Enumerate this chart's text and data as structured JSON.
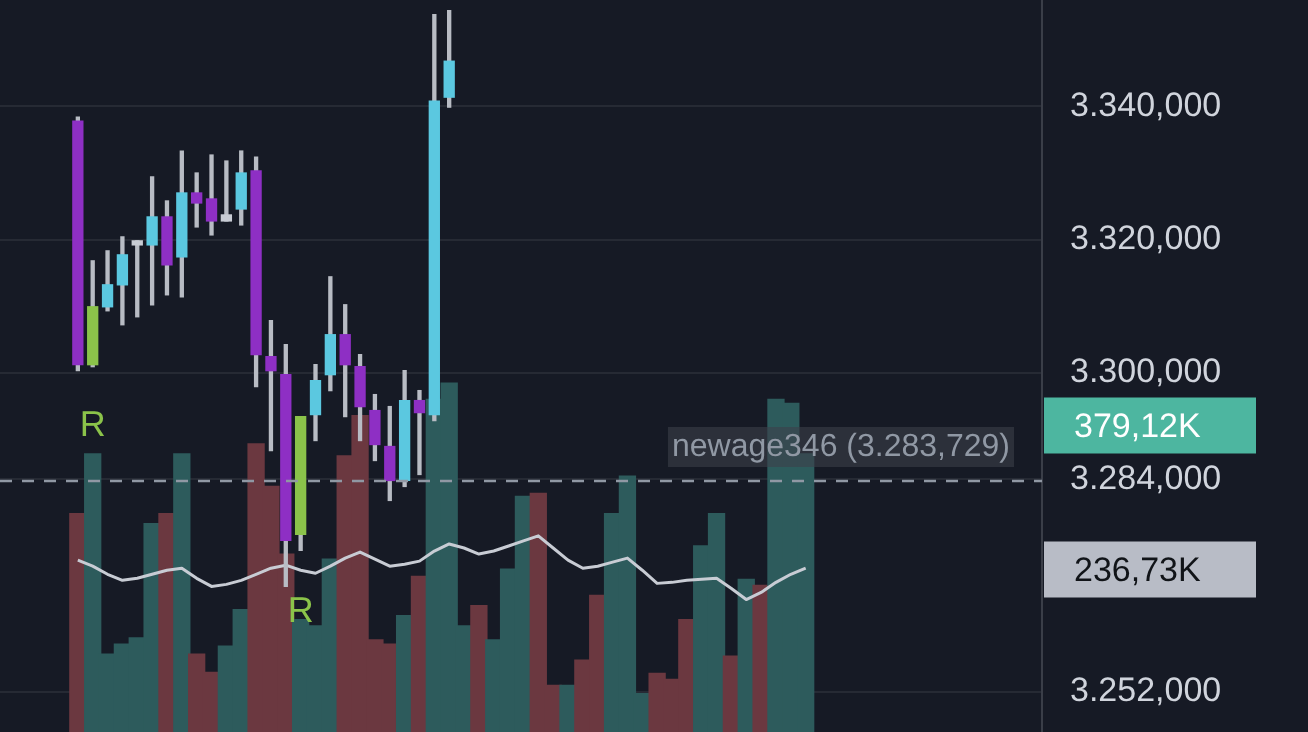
{
  "chart_data": {
    "type": "candlestick",
    "categories": [
      null,
      null,
      null,
      null,
      null,
      null,
      null,
      null,
      null,
      null,
      null,
      null,
      null,
      null,
      null,
      null,
      null,
      null,
      null,
      null,
      null,
      null,
      null,
      null,
      null,
      null,
      null,
      null,
      null,
      null,
      null,
      null,
      null,
      null,
      null,
      null,
      null,
      null,
      null,
      null,
      null,
      null,
      null,
      null,
      null,
      null,
      null,
      null,
      null,
      null
    ],
    "ohlc": [
      [
        3337.8,
        3338.4,
        3300.3,
        3301.2
      ],
      [
        3301.2,
        3316.8,
        3300.9,
        3309.9
      ],
      [
        3309.9,
        3318.3,
        3309.3,
        3313.2
      ],
      [
        3313.2,
        3320.4,
        3307.2,
        3317.7
      ],
      [
        3319.2,
        3319.8,
        3308.4,
        3319.5
      ],
      [
        3319.2,
        3329.4,
        3310.2,
        3323.4
      ],
      [
        3323.4,
        3325.8,
        3311.7,
        3316.2
      ],
      [
        3317.4,
        3333.3,
        3311.4,
        3327.0
      ],
      [
        3327.0,
        3330.0,
        3321.9,
        3325.5
      ],
      [
        3326.1,
        3332.7,
        3320.7,
        3322.8
      ],
      [
        3323.7,
        3331.8,
        3322.8,
        3322.8
      ],
      [
        3324.6,
        3333.3,
        3322.2,
        3330.0
      ],
      [
        3330.3,
        3332.4,
        3297.9,
        3302.7
      ],
      [
        3302.4,
        3307.8,
        3288.3,
        3300.3
      ],
      [
        3299.7,
        3304.2,
        3267.9,
        3274.8
      ],
      [
        3275.7,
        3293.4,
        3273.3,
        3293.4
      ],
      [
        3293.7,
        3301.2,
        3289.8,
        3298.8
      ],
      [
        3299.7,
        3314.4,
        3297.3,
        3305.7
      ],
      [
        3305.7,
        3310.2,
        3293.4,
        3301.2
      ],
      [
        3300.9,
        3302.7,
        3289.8,
        3294.9
      ],
      [
        3294.3,
        3296.7,
        3286.8,
        3289.2
      ],
      [
        3288.9,
        3294.9,
        3280.8,
        3283.8
      ],
      [
        3283.8,
        3300.3,
        3282.9,
        3295.8
      ],
      [
        3295.8,
        3297.3,
        3284.7,
        3294.0
      ],
      [
        3293.7,
        3353.8,
        3292.8,
        3340.8
      ],
      [
        3341.4,
        3354.4,
        3339.9,
        3346.8
      ],
      null,
      null,
      null,
      null,
      null,
      null,
      null,
      null,
      null,
      null,
      null,
      null,
      null,
      null,
      null,
      null,
      null,
      null,
      null,
      null,
      null,
      null,
      null,
      null
    ],
    "colors": [
      "#8e2fc4",
      "#8bc34a",
      "#5bc8e0",
      "#5bc8e0",
      "#c8ccd4",
      "#5bc8e0",
      "#8e2fc4",
      "#5bc8e0",
      "#8e2fc4",
      "#8e2fc4",
      "#c8ccd4",
      "#5bc8e0",
      "#8e2fc4",
      "#8e2fc4",
      "#8e2fc4",
      "#8bc34a",
      "#5bc8e0",
      "#5bc8e0",
      "#8e2fc4",
      "#8e2fc4",
      "#8e2fc4",
      "#8e2fc4",
      "#5bc8e0",
      "#8e2fc4",
      "#5bc8e0",
      "#5bc8e0",
      null,
      null,
      null,
      null,
      null,
      null,
      null,
      null,
      null,
      null,
      null,
      null,
      null,
      null,
      null,
      null,
      null,
      null,
      null,
      null,
      null,
      null,
      null,
      null
    ],
    "series": [
      {
        "type": "bar",
        "axis": "y2",
        "values": [
          292,
          351,
          153,
          163,
          169,
          282,
          292,
          351,
          153,
          135,
          161,
          197,
          361,
          319,
          252,
          187,
          181,
          247,
          349,
          389,
          167,
          163,
          191,
          230,
          405,
          421,
          181,
          201,
          167,
          237,
          309,
          312,
          122,
          122,
          147,
          211,
          292,
          329,
          114,
          134,
          128,
          187,
          260,
          292,
          151,
          227,
          221,
          405,
          401,
          351
        ],
        "colors": [
          "#6b3840",
          "#2d5b5c",
          "#2d5b5c",
          "#2d5b5c",
          "#2d5b5c",
          "#2d5b5c",
          "#6b3840",
          "#2d5b5c",
          "#6b3840",
          "#6b3840",
          "#2d5b5c",
          "#2d5b5c",
          "#6b3840",
          "#6b3840",
          "#6b3840",
          "#2d5b5c",
          "#2d5b5c",
          "#2d5b5c",
          "#6b3840",
          "#6b3840",
          "#6b3840",
          "#6b3840",
          "#2d5b5c",
          "#6b3840",
          "#2d5b5c",
          "#2d5b5c",
          "#2d5b5c",
          "#6b3840",
          "#2d5b5c",
          "#2d5b5c",
          "#2d5b5c",
          "#6b3840",
          "#6b3840",
          "#2d5b5c",
          "#6b3840",
          "#6b3840",
          "#2d5b5c",
          "#2d5b5c",
          "#2d5b5c",
          "#6b3840",
          "#6b3840",
          "#6b3840",
          "#2d5b5c",
          "#2d5b5c",
          "#6b3840",
          "#2d5b5c",
          "#6b3840",
          "#2d5b5c",
          "#2d5b5c",
          "#2d5b5c"
        ]
      },
      {
        "type": "line",
        "axis": "y2",
        "color": "#c8ccd4",
        "values": [
          246,
          240,
          232,
          226,
          228,
          232,
          236,
          238,
          228,
          220,
          222,
          226,
          232,
          238,
          241,
          236,
          233,
          240,
          248,
          254,
          247,
          240,
          242,
          245,
          255,
          262,
          258,
          252,
          255,
          260,
          265,
          270,
          258,
          246,
          238,
          240,
          244,
          248,
          236,
          223,
          224,
          226,
          227,
          228,
          218,
          207,
          214,
          224,
          232,
          238
        ]
      }
    ],
    "ylim": [
      3246,
      3356
    ],
    "yticks": [
      {
        "value": 3340,
        "label": "3.340,000"
      },
      {
        "value": 3320,
        "label": "3.320,000"
      },
      {
        "value": 3300,
        "label": "3.300,000"
      },
      {
        "value": 3284,
        "label": "3.284,000"
      },
      {
        "value": 3252,
        "label": "3.252,000"
      }
    ],
    "y2lim": [
      76,
      800
    ],
    "y2ticks": [
      {
        "value": 379.12,
        "label": "379,12K"
      },
      {
        "value": 236.73,
        "label": "236,73K"
      }
    ],
    "ref_lines": [
      {
        "axis": "y",
        "value": 3283.729,
        "label": "newage346 (3.283,729)",
        "color": "#9098a4",
        "line_style": "dashed"
      }
    ],
    "annotations": [
      "R",
      "R"
    ],
    "grid": "y",
    "legend": false,
    "marker": "none",
    "line_style": "solid"
  }
}
